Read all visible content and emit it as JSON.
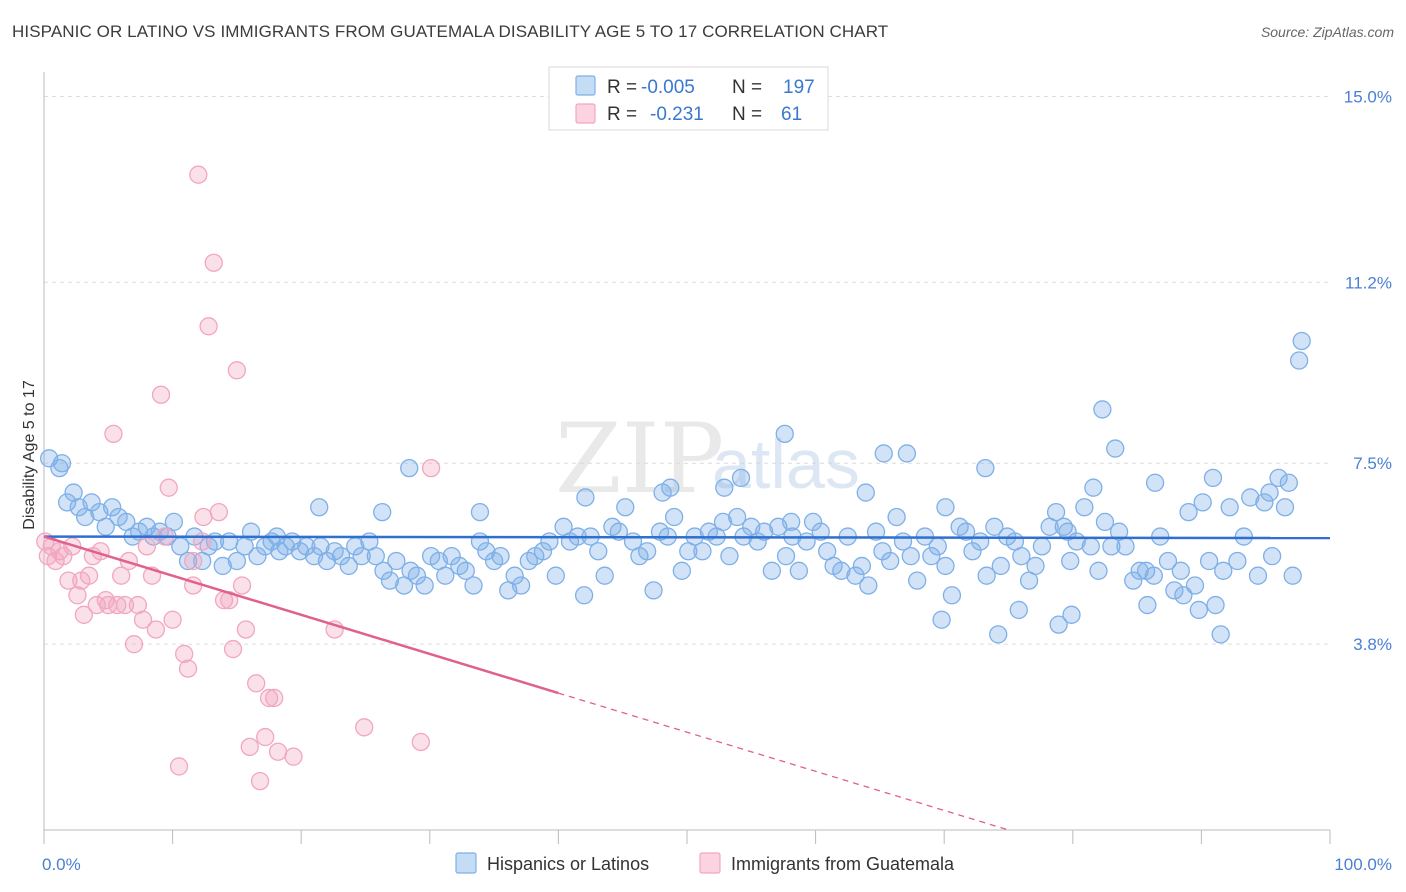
{
  "title": "HISPANIC OR LATINO VS IMMIGRANTS FROM GUATEMALA DISABILITY AGE 5 TO 17 CORRELATION CHART",
  "source": "Source: ZipAtlas.com",
  "watermark": {
    "zip": "ZIP",
    "atlas": "atlas"
  },
  "legend": {
    "rows": [
      {
        "r_label": "R =",
        "r_value": "-0.005",
        "n_label": "N =",
        "n_value": "197",
        "color": "#7eb0e8"
      },
      {
        "r_label": "R =",
        "r_value": "-0.231",
        "n_label": "N =",
        "n_value": "61",
        "color": "#f2a6c0"
      }
    ]
  },
  "bottom_legend": [
    {
      "label": "Hispanics or Latinos",
      "color": "#7eb0e8"
    },
    {
      "label": "Immigrants from Guatemala",
      "color": "#f2a6c0"
    }
  ],
  "chart_data": {
    "type": "scatter",
    "title": "HISPANIC OR LATINO VS IMMIGRANTS FROM GUATEMALA DISABILITY AGE 5 TO 17 CORRELATION CHART",
    "xlabel": "",
    "ylabel": "Disability Age 5 to 17",
    "xlim": [
      0,
      100
    ],
    "ylim": [
      0,
      15.5
    ],
    "x_tick_labels": [
      "0.0%",
      "100.0%"
    ],
    "y_ticks": [
      3.8,
      7.5,
      11.2,
      15.0
    ],
    "y_tick_labels": [
      "3.8%",
      "7.5%",
      "11.2%",
      "15.0%"
    ],
    "grid": true,
    "legend_position": "top-center",
    "series": [
      {
        "name": "Hispanics or Latinos",
        "color": "#7eb0e8",
        "line_color": "#2f6fd0",
        "trend": {
          "x": [
            0,
            100
          ],
          "y": [
            6.0,
            5.97
          ],
          "dashed_from": null
        },
        "points": [
          [
            0.4,
            7.6
          ],
          [
            1.2,
            7.4
          ],
          [
            1.4,
            7.5
          ],
          [
            1.8,
            6.7
          ],
          [
            2.3,
            6.9
          ],
          [
            2.7,
            6.6
          ],
          [
            3.2,
            6.4
          ],
          [
            3.7,
            6.7
          ],
          [
            4.3,
            6.5
          ],
          [
            4.8,
            6.2
          ],
          [
            5.3,
            6.6
          ],
          [
            5.8,
            6.4
          ],
          [
            6.4,
            6.3
          ],
          [
            6.9,
            6.0
          ],
          [
            7.4,
            6.1
          ],
          [
            8.0,
            6.2
          ],
          [
            8.5,
            6.0
          ],
          [
            9.0,
            6.1
          ],
          [
            9.6,
            6.0
          ],
          [
            10.1,
            6.3
          ],
          [
            10.6,
            5.8
          ],
          [
            11.2,
            5.5
          ],
          [
            11.7,
            6.0
          ],
          [
            12.3,
            5.5
          ],
          [
            12.8,
            5.8
          ],
          [
            13.3,
            5.9
          ],
          [
            13.9,
            5.4
          ],
          [
            14.4,
            5.9
          ],
          [
            15.0,
            5.5
          ],
          [
            15.6,
            5.8
          ],
          [
            16.1,
            6.1
          ],
          [
            16.6,
            5.6
          ],
          [
            17.2,
            5.8
          ],
          [
            17.7,
            5.9
          ],
          [
            18.3,
            5.7
          ],
          [
            18.8,
            5.8
          ],
          [
            19.3,
            5.9
          ],
          [
            19.9,
            5.7
          ],
          [
            20.4,
            5.8
          ],
          [
            21.0,
            5.6
          ],
          [
            21.5,
            5.8
          ],
          [
            22.0,
            5.5
          ],
          [
            22.6,
            5.7
          ],
          [
            23.1,
            5.6
          ],
          [
            23.7,
            5.4
          ],
          [
            24.2,
            5.8
          ],
          [
            24.7,
            5.6
          ],
          [
            25.3,
            5.9
          ],
          [
            25.8,
            5.6
          ],
          [
            26.4,
            5.3
          ],
          [
            26.9,
            5.1
          ],
          [
            27.4,
            5.5
          ],
          [
            28.0,
            5.0
          ],
          [
            28.5,
            5.3
          ],
          [
            29.0,
            5.2
          ],
          [
            29.6,
            5.0
          ],
          [
            30.1,
            5.6
          ],
          [
            30.7,
            5.5
          ],
          [
            31.2,
            5.2
          ],
          [
            31.7,
            5.6
          ],
          [
            32.3,
            5.4
          ],
          [
            32.8,
            5.3
          ],
          [
            33.4,
            5.0
          ],
          [
            33.9,
            5.9
          ],
          [
            34.4,
            5.7
          ],
          [
            35.0,
            5.5
          ],
          [
            35.5,
            5.6
          ],
          [
            36.1,
            4.9
          ],
          [
            36.6,
            5.2
          ],
          [
            37.1,
            5.0
          ],
          [
            37.7,
            5.5
          ],
          [
            38.2,
            5.6
          ],
          [
            38.8,
            5.7
          ],
          [
            39.3,
            5.9
          ],
          [
            39.8,
            5.2
          ],
          [
            40.4,
            6.2
          ],
          [
            40.9,
            5.9
          ],
          [
            41.5,
            6.0
          ],
          [
            42.0,
            4.8
          ],
          [
            42.5,
            6.0
          ],
          [
            43.1,
            5.7
          ],
          [
            43.6,
            5.2
          ],
          [
            44.2,
            6.2
          ],
          [
            44.7,
            6.1
          ],
          [
            45.2,
            6.6
          ],
          [
            45.8,
            5.9
          ],
          [
            46.3,
            5.6
          ],
          [
            46.9,
            5.7
          ],
          [
            47.4,
            4.9
          ],
          [
            47.9,
            6.1
          ],
          [
            48.5,
            6.0
          ],
          [
            49.0,
            6.4
          ],
          [
            49.6,
            5.3
          ],
          [
            50.1,
            5.7
          ],
          [
            50.6,
            6.0
          ],
          [
            51.2,
            5.7
          ],
          [
            51.7,
            6.1
          ],
          [
            52.3,
            6.0
          ],
          [
            52.8,
            6.3
          ],
          [
            53.3,
            5.6
          ],
          [
            53.9,
            6.4
          ],
          [
            54.4,
            6.0
          ],
          [
            55.0,
            6.2
          ],
          [
            55.5,
            5.9
          ],
          [
            56.0,
            6.1
          ],
          [
            56.6,
            5.3
          ],
          [
            57.1,
            6.2
          ],
          [
            57.7,
            5.6
          ],
          [
            58.2,
            6.0
          ],
          [
            58.7,
            5.3
          ],
          [
            59.3,
            5.9
          ],
          [
            59.8,
            6.3
          ],
          [
            60.4,
            6.1
          ],
          [
            60.9,
            5.7
          ],
          [
            61.4,
            5.4
          ],
          [
            62.0,
            5.3
          ],
          [
            62.5,
            6.0
          ],
          [
            63.1,
            5.2
          ],
          [
            63.6,
            5.4
          ],
          [
            64.1,
            5.0
          ],
          [
            64.7,
            6.1
          ],
          [
            65.2,
            5.7
          ],
          [
            65.8,
            5.5
          ],
          [
            66.3,
            6.4
          ],
          [
            66.8,
            5.9
          ],
          [
            67.4,
            5.6
          ],
          [
            67.9,
            5.1
          ],
          [
            68.5,
            6.0
          ],
          [
            69.0,
            5.6
          ],
          [
            69.5,
            5.8
          ],
          [
            70.1,
            5.4
          ],
          [
            70.6,
            4.8
          ],
          [
            71.2,
            6.2
          ],
          [
            71.7,
            6.1
          ],
          [
            72.2,
            5.7
          ],
          [
            72.8,
            5.9
          ],
          [
            73.3,
            5.2
          ],
          [
            73.9,
            6.2
          ],
          [
            74.4,
            5.4
          ],
          [
            74.9,
            6.0
          ],
          [
            75.5,
            5.9
          ],
          [
            76.0,
            5.6
          ],
          [
            76.6,
            5.1
          ],
          [
            77.1,
            5.4
          ],
          [
            77.6,
            5.8
          ],
          [
            78.2,
            6.2
          ],
          [
            78.7,
            6.5
          ],
          [
            79.3,
            6.2
          ],
          [
            79.8,
            5.5
          ],
          [
            80.3,
            5.9
          ],
          [
            80.9,
            6.6
          ],
          [
            81.4,
            5.8
          ],
          [
            82.0,
            5.3
          ],
          [
            82.5,
            6.3
          ],
          [
            83.0,
            5.8
          ],
          [
            83.6,
            6.1
          ],
          [
            84.1,
            5.8
          ],
          [
            84.7,
            5.1
          ],
          [
            85.2,
            5.3
          ],
          [
            85.7,
            5.3
          ],
          [
            86.3,
            5.2
          ],
          [
            86.8,
            6.0
          ],
          [
            87.4,
            5.5
          ],
          [
            87.9,
            4.9
          ],
          [
            88.4,
            5.3
          ],
          [
            89.0,
            6.5
          ],
          [
            89.5,
            5.0
          ],
          [
            90.1,
            6.7
          ],
          [
            90.6,
            5.5
          ],
          [
            91.1,
            4.6
          ],
          [
            91.7,
            5.3
          ],
          [
            92.2,
            6.6
          ],
          [
            92.8,
            5.5
          ],
          [
            93.3,
            6.0
          ],
          [
            93.8,
            6.8
          ],
          [
            94.4,
            5.2
          ],
          [
            94.9,
            6.7
          ],
          [
            95.5,
            5.6
          ],
          [
            96.0,
            7.2
          ],
          [
            96.5,
            6.6
          ],
          [
            97.1,
            5.2
          ],
          [
            74.2,
            4.0
          ],
          [
            75.8,
            4.5
          ],
          [
            78.9,
            4.2
          ],
          [
            79.9,
            4.4
          ],
          [
            85.8,
            4.6
          ],
          [
            88.6,
            4.8
          ],
          [
            89.8,
            4.5
          ],
          [
            91.5,
            4.0
          ],
          [
            69.8,
            4.3
          ],
          [
            73.2,
            7.4
          ],
          [
            82.3,
            8.6
          ],
          [
            83.3,
            7.8
          ],
          [
            81.6,
            7.0
          ],
          [
            65.3,
            7.7
          ],
          [
            67.1,
            7.7
          ],
          [
            70.1,
            6.6
          ],
          [
            54.2,
            7.2
          ],
          [
            57.6,
            8.1
          ],
          [
            48.7,
            7.0
          ],
          [
            48.1,
            6.9
          ],
          [
            42.1,
            6.8
          ],
          [
            33.9,
            6.5
          ],
          [
            28.4,
            7.4
          ],
          [
            26.3,
            6.5
          ],
          [
            21.4,
            6.6
          ],
          [
            18.1,
            6.0
          ],
          [
            97.8,
            10.0
          ],
          [
            97.6,
            9.6
          ],
          [
            63.9,
            6.9
          ],
          [
            86.4,
            7.1
          ],
          [
            90.9,
            7.2
          ],
          [
            95.3,
            6.9
          ],
          [
            96.8,
            7.1
          ],
          [
            52.9,
            7.0
          ],
          [
            58.1,
            6.3
          ],
          [
            79.6,
            6.1
          ]
        ]
      },
      {
        "name": "Immigrants from Guatemala",
        "color": "#f2a6c0",
        "line_color": "#e0618e",
        "trend": {
          "x": [
            0,
            40,
            75
          ],
          "y": [
            6.0,
            2.8,
            0.0
          ],
          "dashed_from": 40
        },
        "points": [
          [
            0.1,
            5.9
          ],
          [
            0.3,
            5.6
          ],
          [
            0.6,
            5.8
          ],
          [
            0.9,
            5.5
          ],
          [
            1.2,
            5.7
          ],
          [
            1.5,
            5.6
          ],
          [
            1.9,
            5.1
          ],
          [
            2.2,
            5.8
          ],
          [
            2.6,
            4.8
          ],
          [
            2.9,
            5.1
          ],
          [
            3.1,
            4.4
          ],
          [
            3.5,
            5.2
          ],
          [
            3.8,
            5.6
          ],
          [
            4.1,
            4.6
          ],
          [
            4.4,
            5.7
          ],
          [
            4.8,
            4.7
          ],
          [
            5.0,
            4.6
          ],
          [
            5.4,
            8.1
          ],
          [
            5.7,
            4.6
          ],
          [
            6.0,
            5.2
          ],
          [
            6.3,
            4.6
          ],
          [
            6.6,
            5.5
          ],
          [
            7.0,
            3.8
          ],
          [
            7.3,
            4.6
          ],
          [
            7.7,
            4.3
          ],
          [
            8.0,
            5.8
          ],
          [
            8.4,
            5.2
          ],
          [
            8.7,
            4.1
          ],
          [
            9.1,
            8.9
          ],
          [
            9.4,
            6.0
          ],
          [
            9.7,
            7.0
          ],
          [
            10.0,
            4.3
          ],
          [
            10.5,
            1.3
          ],
          [
            10.9,
            3.6
          ],
          [
            11.2,
            3.3
          ],
          [
            11.6,
            5.0
          ],
          [
            12.0,
            13.4
          ],
          [
            12.4,
            6.4
          ],
          [
            12.8,
            10.3
          ],
          [
            13.2,
            11.6
          ],
          [
            13.6,
            6.5
          ],
          [
            14.0,
            4.7
          ],
          [
            14.4,
            4.7
          ],
          [
            14.7,
            3.7
          ],
          [
            15.0,
            9.4
          ],
          [
            15.4,
            5.0
          ],
          [
            15.7,
            4.1
          ],
          [
            16.0,
            1.7
          ],
          [
            16.5,
            3.0
          ],
          [
            16.8,
            1.0
          ],
          [
            17.2,
            1.9
          ],
          [
            17.5,
            2.7
          ],
          [
            17.9,
            2.7
          ],
          [
            18.2,
            1.6
          ],
          [
            19.4,
            1.5
          ],
          [
            22.6,
            4.1
          ],
          [
            24.9,
            2.1
          ],
          [
            29.3,
            1.8
          ],
          [
            30.1,
            7.4
          ],
          [
            11.6,
            5.5
          ],
          [
            12.3,
            5.9
          ]
        ]
      }
    ]
  }
}
